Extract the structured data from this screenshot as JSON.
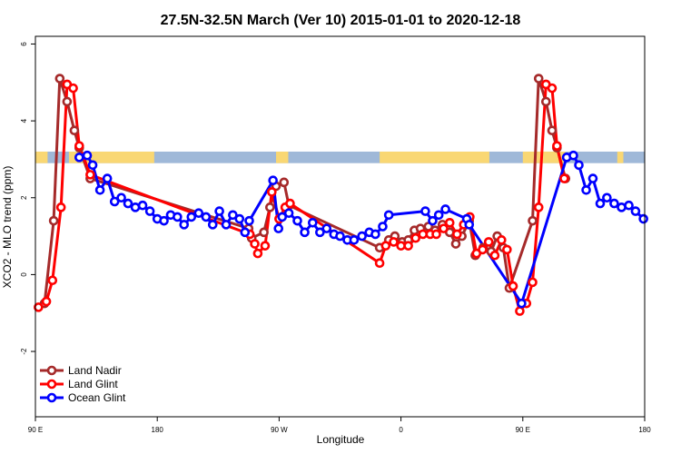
{
  "chart_data": {
    "type": "line",
    "title": "27.5N-32.5N March (Ver 10)   2015-01-01 to 2020-12-18",
    "xlabel": "Longitude",
    "ylabel": "XCO2 - MLO trend (ppm)",
    "xlim": [
      0,
      1
    ],
    "ylim": [
      -3.7,
      6.2
    ],
    "x_ticks": [
      {
        "pos": 0.0,
        "label": "90 E"
      },
      {
        "pos": 0.2,
        "label": "180"
      },
      {
        "pos": 0.4,
        "label": "90 W"
      },
      {
        "pos": 0.6,
        "label": "0"
      },
      {
        "pos": 0.8,
        "label": "90 E"
      },
      {
        "pos": 1.0,
        "label": "180"
      }
    ],
    "y_ticks": [
      -2,
      0,
      2,
      4,
      6
    ],
    "legend_position": "bottom-left",
    "land_ocean_strip": {
      "y_range": [
        2.9,
        3.2
      ],
      "ocean_color": "#9fb8d8",
      "land_color": "#f9d773"
    },
    "series": [
      {
        "name": "Land Nadir",
        "color": "#a52a2a",
        "points": [
          [
            0.015,
            -0.75
          ],
          [
            0.03,
            1.4
          ],
          [
            0.04,
            5.1
          ],
          [
            0.052,
            4.5
          ],
          [
            0.064,
            3.75
          ],
          [
            0.072,
            3.3
          ],
          [
            0.09,
            2.5
          ],
          [
            0.35,
            1.2
          ],
          [
            0.355,
            0.95
          ],
          [
            0.375,
            1.1
          ],
          [
            0.385,
            1.75
          ],
          [
            0.395,
            2.3
          ],
          [
            0.408,
            2.4
          ],
          [
            0.416,
            1.8
          ],
          [
            0.565,
            0.7
          ],
          [
            0.58,
            0.9
          ],
          [
            0.59,
            1.0
          ],
          [
            0.602,
            0.85
          ],
          [
            0.612,
            0.9
          ],
          [
            0.622,
            1.15
          ],
          [
            0.632,
            1.2
          ],
          [
            0.645,
            1.25
          ],
          [
            0.656,
            1.15
          ],
          [
            0.668,
            1.3
          ],
          [
            0.68,
            1.1
          ],
          [
            0.69,
            0.8
          ],
          [
            0.7,
            1.0
          ],
          [
            0.712,
            1.4
          ],
          [
            0.722,
            0.5
          ],
          [
            0.735,
            0.7
          ],
          [
            0.748,
            0.6
          ],
          [
            0.758,
            1.0
          ],
          [
            0.768,
            0.7
          ],
          [
            0.778,
            -0.35
          ],
          [
            0.816,
            1.4
          ],
          [
            0.826,
            5.1
          ],
          [
            0.838,
            4.5
          ],
          [
            0.848,
            3.75
          ],
          [
            0.856,
            3.3
          ],
          [
            0.87,
            2.5
          ]
        ]
      },
      {
        "name": "Land Glint",
        "color": "#ff0000",
        "points": [
          [
            0.005,
            -0.85
          ],
          [
            0.018,
            -0.7
          ],
          [
            0.028,
            -0.15
          ],
          [
            0.042,
            1.75
          ],
          [
            0.052,
            4.95
          ],
          [
            0.062,
            4.85
          ],
          [
            0.072,
            3.35
          ],
          [
            0.09,
            2.6
          ],
          [
            0.352,
            1.05
          ],
          [
            0.36,
            0.8
          ],
          [
            0.365,
            0.55
          ],
          [
            0.377,
            0.75
          ],
          [
            0.388,
            2.15
          ],
          [
            0.4,
            1.45
          ],
          [
            0.41,
            1.75
          ],
          [
            0.418,
            1.85
          ],
          [
            0.565,
            0.3
          ],
          [
            0.575,
            0.75
          ],
          [
            0.588,
            0.85
          ],
          [
            0.6,
            0.75
          ],
          [
            0.612,
            0.75
          ],
          [
            0.624,
            0.95
          ],
          [
            0.636,
            1.05
          ],
          [
            0.648,
            1.05
          ],
          [
            0.658,
            1.05
          ],
          [
            0.67,
            1.2
          ],
          [
            0.68,
            1.35
          ],
          [
            0.692,
            1.05
          ],
          [
            0.703,
            1.3
          ],
          [
            0.713,
            1.5
          ],
          [
            0.724,
            0.55
          ],
          [
            0.734,
            0.65
          ],
          [
            0.744,
            0.85
          ],
          [
            0.754,
            0.5
          ],
          [
            0.765,
            0.9
          ],
          [
            0.774,
            0.65
          ],
          [
            0.784,
            -0.3
          ],
          [
            0.795,
            -0.95
          ],
          [
            0.806,
            -0.75
          ],
          [
            0.816,
            -0.2
          ],
          [
            0.826,
            1.75
          ],
          [
            0.838,
            4.95
          ],
          [
            0.848,
            4.85
          ],
          [
            0.856,
            3.35
          ],
          [
            0.868,
            2.5
          ]
        ]
      },
      {
        "name": "Ocean Glint",
        "color": "#0000ff",
        "points": [
          [
            0.072,
            3.05
          ],
          [
            0.085,
            3.1
          ],
          [
            0.094,
            2.85
          ],
          [
            0.106,
            2.2
          ],
          [
            0.118,
            2.5
          ],
          [
            0.13,
            1.9
          ],
          [
            0.141,
            2.0
          ],
          [
            0.152,
            1.85
          ],
          [
            0.164,
            1.75
          ],
          [
            0.176,
            1.8
          ],
          [
            0.188,
            1.65
          ],
          [
            0.2,
            1.45
          ],
          [
            0.211,
            1.4
          ],
          [
            0.222,
            1.55
          ],
          [
            0.233,
            1.5
          ],
          [
            0.244,
            1.3
          ],
          [
            0.256,
            1.5
          ],
          [
            0.268,
            1.6
          ],
          [
            0.28,
            1.5
          ],
          [
            0.291,
            1.3
          ],
          [
            0.302,
            1.65
          ],
          [
            0.313,
            1.3
          ],
          [
            0.324,
            1.55
          ],
          [
            0.335,
            1.45
          ],
          [
            0.344,
            1.1
          ],
          [
            0.351,
            1.4
          ],
          [
            0.39,
            2.45
          ],
          [
            0.399,
            1.2
          ],
          [
            0.405,
            1.5
          ],
          [
            0.416,
            1.6
          ],
          [
            0.43,
            1.4
          ],
          [
            0.442,
            1.1
          ],
          [
            0.455,
            1.35
          ],
          [
            0.467,
            1.1
          ],
          [
            0.478,
            1.2
          ],
          [
            0.49,
            1.05
          ],
          [
            0.5,
            1.0
          ],
          [
            0.512,
            0.9
          ],
          [
            0.523,
            0.9
          ],
          [
            0.536,
            1.0
          ],
          [
            0.548,
            1.1
          ],
          [
            0.558,
            1.05
          ],
          [
            0.57,
            1.25
          ],
          [
            0.58,
            1.55
          ],
          [
            0.64,
            1.65
          ],
          [
            0.652,
            1.4
          ],
          [
            0.662,
            1.55
          ],
          [
            0.673,
            1.7
          ],
          [
            0.708,
            1.45
          ],
          [
            0.712,
            1.3
          ],
          [
            0.798,
            -0.75
          ],
          [
            0.872,
            3.05
          ],
          [
            0.883,
            3.1
          ],
          [
            0.892,
            2.85
          ],
          [
            0.904,
            2.2
          ],
          [
            0.915,
            2.5
          ],
          [
            0.927,
            1.85
          ],
          [
            0.938,
            2.0
          ],
          [
            0.95,
            1.85
          ],
          [
            0.962,
            1.75
          ],
          [
            0.974,
            1.8
          ],
          [
            0.985,
            1.65
          ],
          [
            0.998,
            1.45
          ]
        ]
      }
    ]
  }
}
